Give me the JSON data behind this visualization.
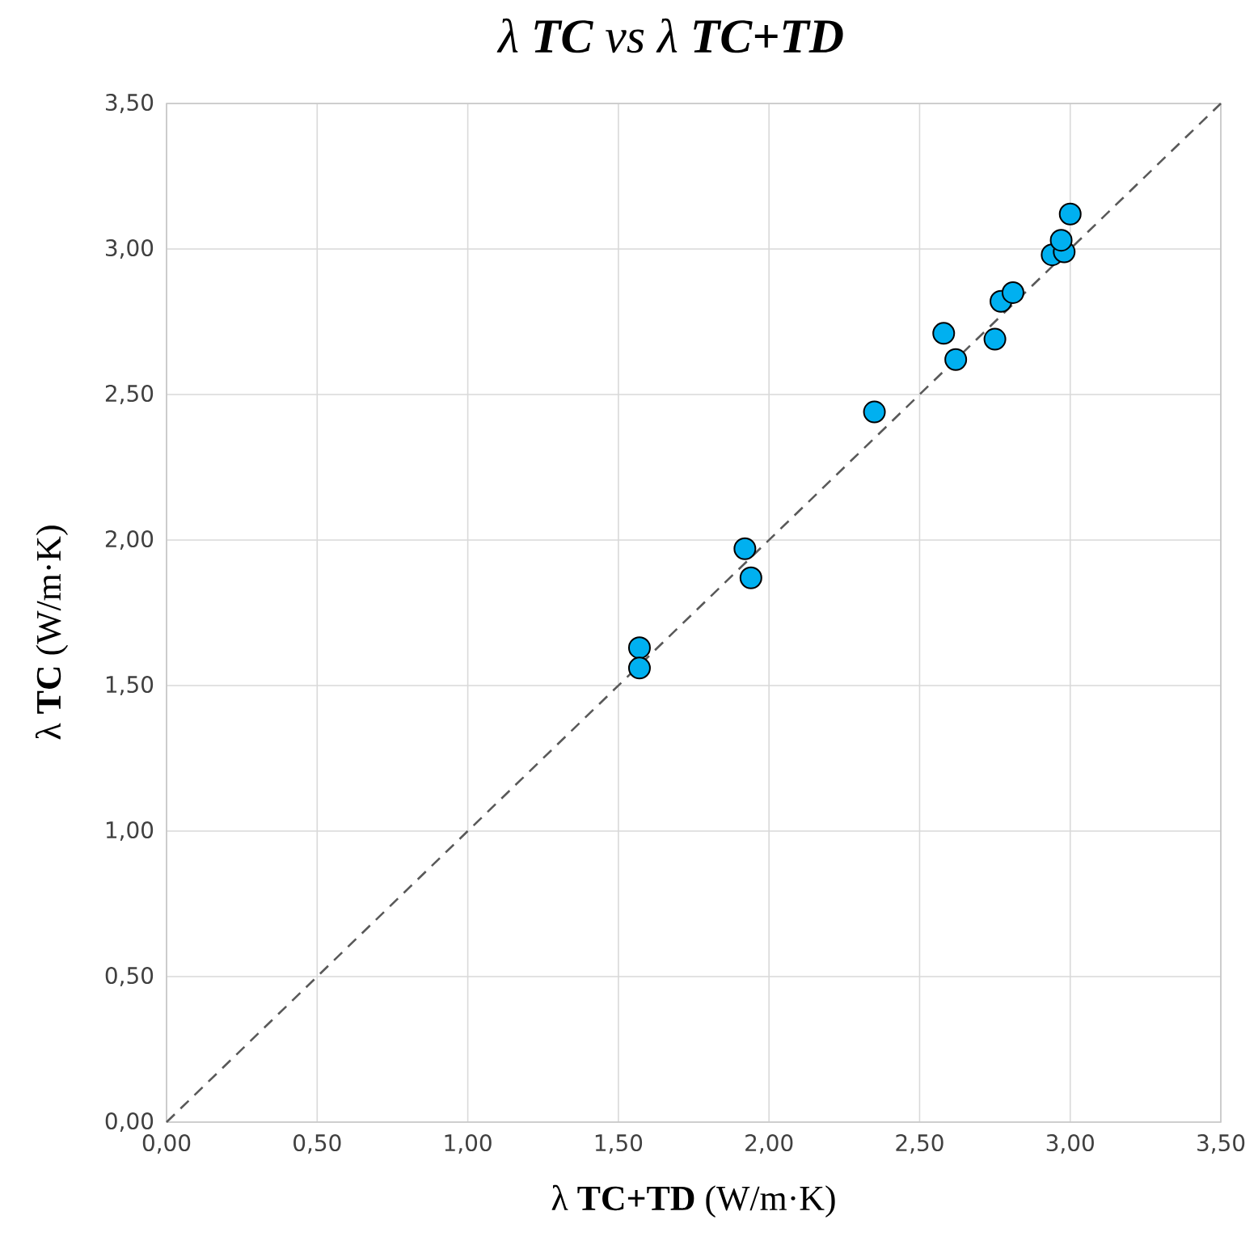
{
  "chart_data": {
    "type": "scatter",
    "title": "λ **TC** vs λ **TC+TD**",
    "xlabel": "λ **TC+TD** (W/m·K)",
    "ylabel": "λ **TC** (W/m·K)",
    "xlim": [
      0,
      3.5
    ],
    "ylim": [
      0,
      3.5
    ],
    "xticks": [
      {
        "value": 0,
        "label": "0,00"
      },
      {
        "value": 0.5,
        "label": "0,50"
      },
      {
        "value": 1,
        "label": "1,00"
      },
      {
        "value": 1.5,
        "label": "1,50"
      },
      {
        "value": 2,
        "label": "2,00"
      },
      {
        "value": 2.5,
        "label": "2,50"
      },
      {
        "value": 3,
        "label": "3,00"
      },
      {
        "value": 3.5,
        "label": "3,50"
      }
    ],
    "yticks": [
      {
        "value": 0,
        "label": "0,00"
      },
      {
        "value": 0.5,
        "label": "0,50"
      },
      {
        "value": 1,
        "label": "1,00"
      },
      {
        "value": 1.5,
        "label": "1,50"
      },
      {
        "value": 2,
        "label": "2,00"
      },
      {
        "value": 2.5,
        "label": "2,50"
      },
      {
        "value": 3,
        "label": "3,00"
      },
      {
        "value": 3.5,
        "label": "3,50"
      }
    ],
    "grid": true,
    "marker": "circle",
    "series": [
      {
        "type": "line",
        "color": "#595959",
        "line_style": "dashed",
        "marker": "none",
        "x": [
          0,
          3.5
        ],
        "values": [
          0,
          3.5
        ]
      },
      {
        "color": "#00b0f0",
        "x": [
          1.57,
          1.57,
          1.92,
          1.94,
          2.35,
          2.58,
          2.62,
          2.75,
          2.77,
          2.81,
          2.94,
          2.98,
          2.97,
          3.0
        ],
        "values": [
          1.63,
          1.56,
          1.97,
          1.87,
          2.44,
          2.71,
          2.62,
          2.69,
          2.82,
          2.85,
          2.98,
          2.99,
          3.03,
          3.12
        ]
      }
    ]
  }
}
